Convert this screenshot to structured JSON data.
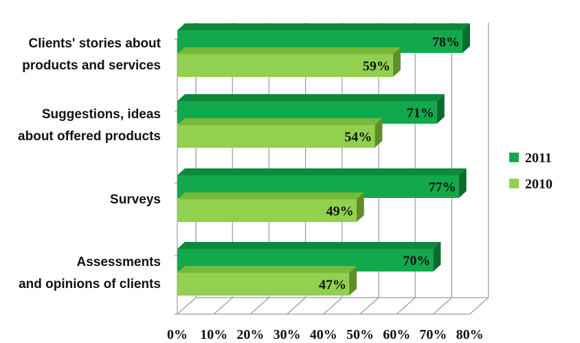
{
  "chart_data": {
    "type": "bar",
    "orientation": "horizontal",
    "style": "3d",
    "categories": [
      [
        "Clients' stories about",
        "products and services"
      ],
      [
        "Suggestions, ideas",
        "about offered products"
      ],
      [
        "Surveys"
      ],
      [
        "Assessments",
        "and opinions of clients"
      ]
    ],
    "series": [
      {
        "name": "2011",
        "values": [
          78,
          71,
          77,
          70
        ],
        "labels": [
          "78%",
          "71%",
          "77%",
          "70%"
        ],
        "color": "#12a94c",
        "top_color": "#0c8a3a",
        "side_color": "#086b2c"
      },
      {
        "name": "2010",
        "values": [
          59,
          54,
          49,
          47
        ],
        "labels": [
          "59%",
          "54%",
          "49%",
          "47%"
        ],
        "color": "#92d050",
        "top_color": "#7ab83c",
        "side_color": "#5e8f2a"
      }
    ],
    "xlim": [
      0,
      80
    ],
    "xticks": [
      "0%",
      "10%",
      "20%",
      "30%",
      "40%",
      "50%",
      "60%",
      "70%",
      "80%"
    ],
    "grid": true,
    "legend_position": "right"
  }
}
